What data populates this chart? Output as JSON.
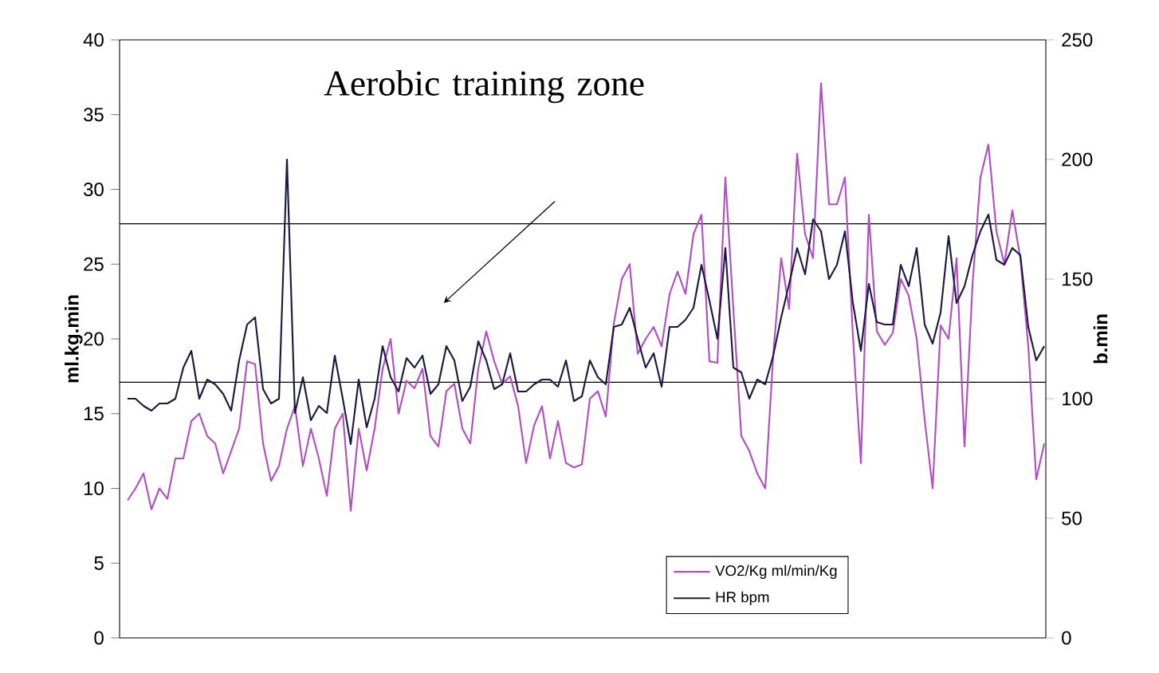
{
  "chart_data": {
    "type": "line",
    "categories": [
      null,
      null,
      null,
      null,
      null,
      null,
      null,
      null,
      null,
      null,
      null,
      null,
      null,
      null,
      null,
      null,
      null,
      null,
      null,
      null,
      null,
      null,
      null,
      null,
      null,
      null,
      null,
      null,
      null,
      null,
      null,
      null,
      null,
      null,
      null,
      null,
      null,
      null,
      null,
      null,
      null,
      null,
      null,
      null,
      null,
      null,
      null,
      null,
      null,
      null,
      null,
      null,
      null,
      null,
      null,
      null,
      null,
      null,
      null,
      null,
      null,
      null,
      null,
      null,
      null,
      null,
      null,
      null,
      null,
      null,
      null,
      null,
      null,
      null,
      null,
      null,
      null,
      null,
      null,
      null,
      null,
      null,
      null,
      null,
      null,
      null,
      null,
      null,
      null,
      null,
      null,
      null,
      null,
      null,
      null,
      null,
      null,
      null,
      null,
      null,
      null,
      null,
      null,
      null,
      null,
      null,
      null,
      null,
      null,
      null,
      null,
      null,
      null,
      null,
      null,
      null
    ],
    "ylabel": "ml.kg.min",
    "y2label": "b.min",
    "ylim": [
      0,
      40
    ],
    "yticks": [
      0,
      5,
      10,
      15,
      20,
      25,
      30,
      35,
      40
    ],
    "y2lim": [
      0,
      250
    ],
    "y2ticks": [
      0,
      50,
      100,
      150,
      200,
      250
    ],
    "annotations": [
      "Aerobic training zone"
    ],
    "ref_lines": [
      {
        "axis": "y",
        "value": 27.7,
        "color": "#000000"
      },
      {
        "axis": "y",
        "value": 17.1,
        "color": "#000000"
      }
    ],
    "legend": "bottom right",
    "series": [
      {
        "name": "VO2/Kg ml/min/Kg",
        "color": "#b04fc0",
        "values": [
          9.2,
          10,
          11,
          8.6,
          10,
          9.3,
          12,
          12,
          14.5,
          15,
          13.5,
          13,
          11,
          12.5,
          14,
          18.5,
          18.3,
          13,
          10.5,
          11.5,
          14,
          15.5,
          11.5,
          14,
          12,
          9.5,
          14,
          15,
          8.5,
          14,
          11.2,
          14,
          18,
          20,
          15,
          17.2,
          16.7,
          18,
          13.5,
          12.8,
          16.5,
          17,
          14,
          13,
          18,
          20.5,
          18.5,
          17,
          17.5,
          15.5,
          11.7,
          14.2,
          15.5,
          12,
          14.5,
          11.7,
          11.4,
          11.6,
          16,
          16.5,
          14.8,
          21,
          24,
          25,
          19,
          20,
          20.8,
          19.5,
          23,
          24.5,
          23,
          27,
          28.3,
          18.5,
          18.4,
          30.8,
          22,
          13.5,
          12.5,
          11,
          10,
          18.9,
          25.4,
          22,
          32.4,
          27,
          25.4,
          37.1,
          29,
          29,
          30.8,
          20.2,
          11.7,
          28.3,
          20.5,
          19.6,
          20.4,
          24,
          22.9,
          20,
          14.6,
          10,
          20.9,
          20,
          25.4,
          12.8,
          23.6,
          30.8,
          33,
          27.2,
          25,
          28.6,
          25.4,
          19.5,
          10.6,
          13
        ]
      },
      {
        "name": "HR bpm",
        "color": "#1a1a40",
        "axis": "y2",
        "values": [
          100,
          100,
          97,
          95,
          98,
          98,
          100,
          113,
          120,
          100,
          108,
          106,
          102,
          95,
          116,
          131,
          134,
          104,
          98,
          100,
          200,
          94,
          109,
          91,
          97,
          94,
          118,
          100,
          81,
          108,
          88,
          100,
          122,
          109,
          103,
          117,
          113,
          118,
          102,
          106,
          122,
          116,
          99,
          105,
          124,
          116,
          104,
          106,
          119,
          103,
          103,
          106,
          108,
          108,
          105,
          116,
          99,
          101,
          116,
          109,
          106,
          130,
          131,
          138,
          125,
          113,
          119,
          105,
          130,
          130,
          133,
          138,
          156,
          141,
          125,
          163,
          113,
          111,
          100,
          108,
          106,
          118,
          134,
          148,
          163,
          152,
          175,
          170,
          150,
          156,
          170,
          140,
          120,
          148,
          132,
          131,
          131,
          156,
          147,
          163,
          131,
          123,
          136,
          168,
          140,
          147,
          160,
          170,
          177,
          158,
          156,
          163,
          160,
          130,
          116,
          122
        ]
      }
    ]
  }
}
